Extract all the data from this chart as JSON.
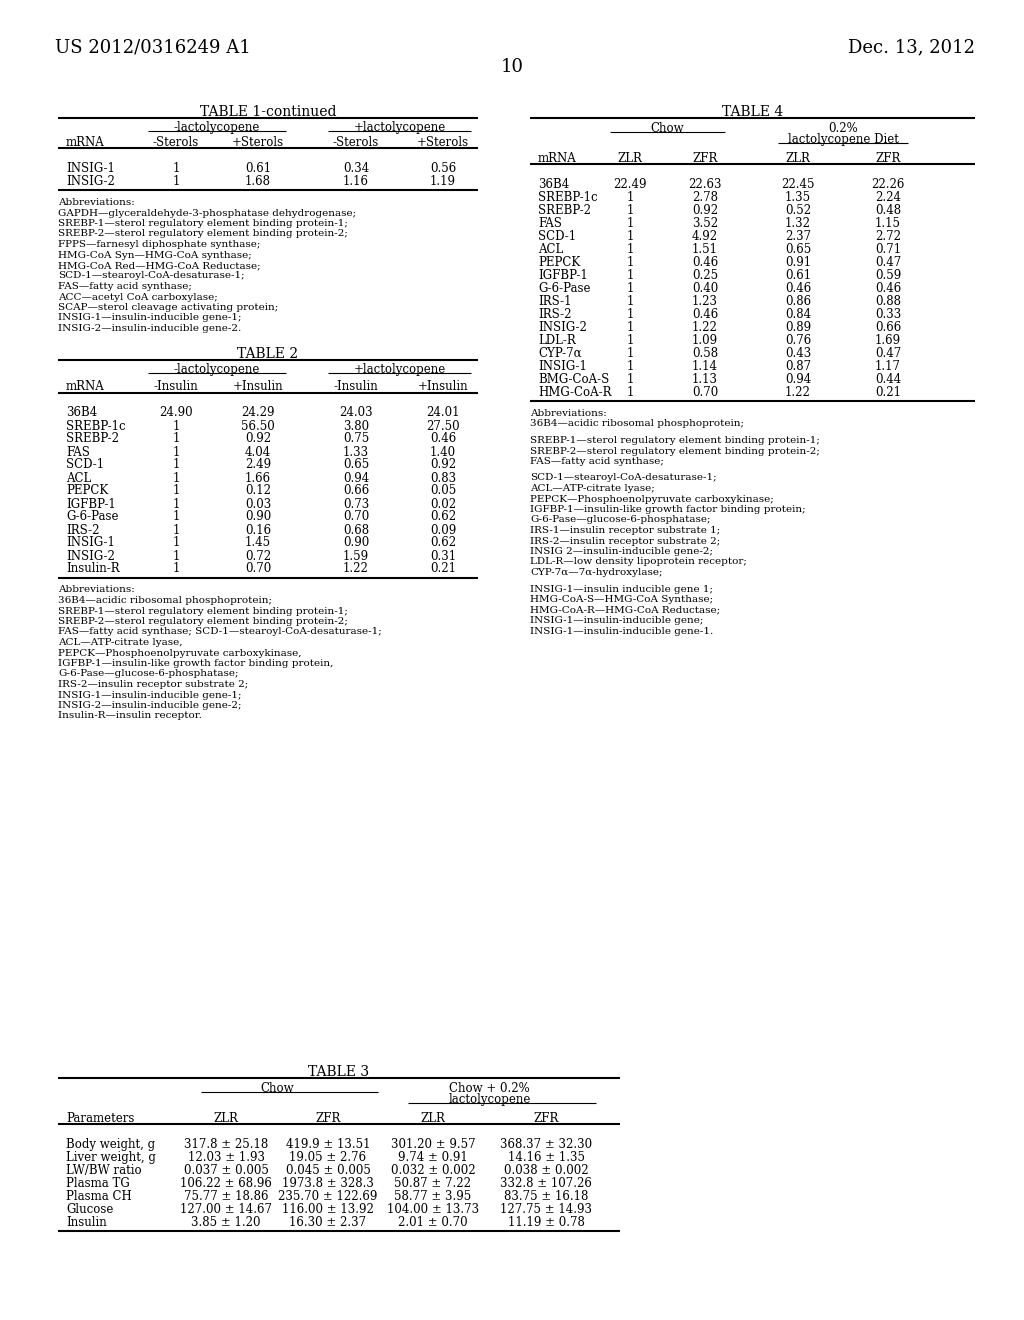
{
  "page_number": "10",
  "patent_number": "US 2012/0316249 A1",
  "patent_date": "Dec. 13, 2012",
  "background_color": "#ffffff",
  "table1_continued": {
    "title": "TABLE 1-continued",
    "col_group1": "-lactolycopene",
    "col_group2": "+lactolycopene",
    "col_headers": [
      "mRNA",
      "-Sterols",
      "+Sterols",
      "-Sterols",
      "+Sterols"
    ],
    "rows": [
      [
        "INSIG-1",
        "1",
        "0.61",
        "0.34",
        "0.56"
      ],
      [
        "INSIG-2",
        "1",
        "1.68",
        "1.16",
        "1.19"
      ]
    ],
    "abbreviations": [
      "Abbreviations:",
      "GAPDH—glyceraldehyde-3-phosphatase dehydrogenase;",
      "SREBP-1—sterol regulatory element binding protein-1;",
      "SREBP-2—sterol regulatory element binding protein-2;",
      "FPPS—farnesyl diphosphate synthase;",
      "HMG-CoA Syn—HMG-CoA synthase;",
      "HMG-CoA Red—HMG-CoA Reductase;",
      "SCD-1—stearoyl-CoA-desaturase-1;",
      "FAS—fatty acid synthase;",
      "ACC—acetyl CoA carboxylase;",
      "SCAP—sterol cleavage activating protein;",
      "INSIG-1—insulin-inducible gene-1;",
      "INSIG-2—insulin-inducible gene-2."
    ]
  },
  "table2": {
    "title": "TABLE 2",
    "col_group1": "-lactolycopene",
    "col_group2": "+lactolycopene",
    "col_headers": [
      "mRNA",
      "-Insulin",
      "+Insulin",
      "-Insulin",
      "+Insulin"
    ],
    "rows": [
      [
        "36B4",
        "24.90",
        "24.29",
        "24.03",
        "24.01"
      ],
      [
        "SREBP-1c",
        "1",
        "56.50",
        "3.80",
        "27.50"
      ],
      [
        "SREBP-2",
        "1",
        "0.92",
        "0.75",
        "0.46"
      ],
      [
        "FAS",
        "1",
        "4.04",
        "1.33",
        "1.40"
      ],
      [
        "SCD-1",
        "1",
        "2.49",
        "0.65",
        "0.92"
      ],
      [
        "ACL",
        "1",
        "1.66",
        "0.94",
        "0.83"
      ],
      [
        "PEPCK",
        "1",
        "0.12",
        "0.66",
        "0.05"
      ],
      [
        "IGFBP-1",
        "1",
        "0.03",
        "0.73",
        "0.02"
      ],
      [
        "G-6-Pase",
        "1",
        "0.90",
        "0.70",
        "0.62"
      ],
      [
        "IRS-2",
        "1",
        "0.16",
        "0.68",
        "0.09"
      ],
      [
        "INSIG-1",
        "1",
        "1.45",
        "0.90",
        "0.62"
      ],
      [
        "INSIG-2",
        "1",
        "0.72",
        "1.59",
        "0.31"
      ],
      [
        "Insulin-R",
        "1",
        "0.70",
        "1.22",
        "0.21"
      ]
    ],
    "abbreviations": [
      "Abbreviations:",
      "36B4—acidic ribosomal phosphoprotein;",
      "SREBP-1—sterol regulatory element binding protein-1;",
      "SREBP-2—sterol regulatory element binding protein-2;",
      "FAS—fatty acid synthase; SCD-1—stearoyl-CoA-desaturase-1;",
      "ACL—ATP-citrate lyase,",
      "PEPCK—Phosphoenolpyruvate carboxykinase,",
      "IGFBP-1—insulin-like growth factor binding protein,",
      "G-6-Pase—glucose-6-phosphatase;",
      "IRS-2—insulin receptor substrate 2;",
      "INSIG-1—insulin-inducible gene-1;",
      "INSIG-2—insulin-inducible gene-2;",
      "Insulin-R—insulin receptor."
    ]
  },
  "table3": {
    "title": "TABLE 3",
    "col_group1": "Chow",
    "col_group2": "Chow + 0.2%\nlactolycopene",
    "col_headers": [
      "Parameters",
      "ZLR",
      "ZFR",
      "ZLR",
      "ZFR"
    ],
    "rows": [
      [
        "Body weight, g",
        "317.8 ± 25.18",
        "419.9 ± 13.51",
        "301.20 ± 9.57",
        "368.37 ± 32.30"
      ],
      [
        "Liver weight, g",
        "12.03 ± 1.93",
        "19.05 ± 2.76",
        "9.74 ± 0.91",
        "14.16 ± 1.35"
      ],
      [
        "LW/BW ratio",
        "0.037 ± 0.005",
        "0.045 ± 0.005",
        "0.032 ± 0.002",
        "0.038 ± 0.002"
      ],
      [
        "Plasma TG",
        "106.22 ± 68.96",
        "1973.8 ± 328.3",
        "50.87 ± 7.22",
        "332.8 ± 107.26"
      ],
      [
        "Plasma CH",
        "75.77 ± 18.86",
        "235.70 ± 122.69",
        "58.77 ± 3.95",
        "83.75 ± 16.18"
      ],
      [
        "Glucose",
        "127.00 ± 14.67",
        "116.00 ± 13.92",
        "104.00 ± 13.73",
        "127.75 ± 14.93"
      ],
      [
        "Insulin",
        "3.85 ± 1.20",
        "16.30 ± 2.37",
        "2.01 ± 0.70",
        "11.19 ± 0.78"
      ]
    ]
  },
  "table4": {
    "title": "TABLE 4",
    "col_group1": "Chow",
    "col_group2_line1": "0.2%",
    "col_group2_line2": "lactolycopene Diet",
    "col_headers": [
      "mRNA",
      "ZLR",
      "ZFR",
      "ZLR",
      "ZFR"
    ],
    "rows": [
      [
        "36B4",
        "22.49",
        "22.63",
        "22.45",
        "22.26"
      ],
      [
        "SREBP-1c",
        "1",
        "2.78",
        "1.35",
        "2.24"
      ],
      [
        "SREBP-2",
        "1",
        "0.92",
        "0.52",
        "0.48"
      ],
      [
        "FAS",
        "1",
        "3.52",
        "1.32",
        "1.15"
      ],
      [
        "SCD-1",
        "1",
        "4.92",
        "2.37",
        "2.72"
      ],
      [
        "ACL",
        "1",
        "1.51",
        "0.65",
        "0.71"
      ],
      [
        "PEPCK",
        "1",
        "0.46",
        "0.91",
        "0.47"
      ],
      [
        "IGFBP-1",
        "1",
        "0.25",
        "0.61",
        "0.59"
      ],
      [
        "G-6-Pase",
        "1",
        "0.40",
        "0.46",
        "0.46"
      ],
      [
        "IRS-1",
        "1",
        "1.23",
        "0.86",
        "0.88"
      ],
      [
        "IRS-2",
        "1",
        "0.46",
        "0.84",
        "0.33"
      ],
      [
        "INSIG-2",
        "1",
        "1.22",
        "0.89",
        "0.66"
      ],
      [
        "LDL-R",
        "1",
        "1.09",
        "0.76",
        "1.69"
      ],
      [
        "CYP-7α",
        "1",
        "0.58",
        "0.43",
        "0.47"
      ],
      [
        "INSIG-1",
        "1",
        "1.14",
        "0.87",
        "1.17"
      ],
      [
        "BMG-CoA-S",
        "1",
        "1.13",
        "0.94",
        "0.44"
      ],
      [
        "HMG-CoA-R",
        "1",
        "0.70",
        "1.22",
        "0.21"
      ]
    ],
    "abbreviations": [
      "Abbreviations:",
      "36B4—acidic ribosomal phosphoprotein;",
      "",
      "SREBP-1—sterol regulatory element binding protein-1;",
      "SREBP-2—sterol regulatory element binding protein-2;",
      "FAS—fatty acid synthase;",
      "",
      "SCD-1—stearoyl-CoA-desaturase-1;",
      "ACL—ATP-citrate lyase;",
      "PEPCK—Phosphoenolpyruvate carboxykinase;",
      "IGFBP-1—insulin-like growth factor binding protein;",
      "G-6-Pase—glucose-6-phosphatase;",
      "IRS-1—insulin receptor substrate 1;",
      "IRS-2—insulin receptor substrate 2;",
      "INSIG 2—insulin-inducible gene-2;",
      "LDL-R—low density lipoprotein receptor;",
      "CYP-7α—7α-hydroxylase;",
      "",
      "INSIG-1—insulin inducible gene 1;",
      "HMG-CoA-S—HMG-CoA Synthase;",
      "HMG-CoA-R—HMG-CoA Reductase;",
      "INSIG-1—insulin-inducible gene;",
      "INSIG-1—insulin-inducible gene-1."
    ]
  }
}
